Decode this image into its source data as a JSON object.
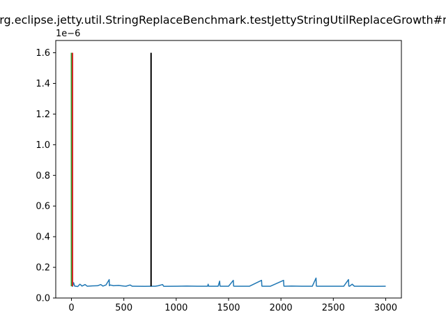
{
  "chart_data": {
    "type": "line",
    "title": "org.eclipse.jetty.util.StringReplaceBenchmark.testJettyStringUtilReplaceGrowth#m",
    "xlabel": "",
    "ylabel": "",
    "y_offset_label": "1e−6",
    "y_scale": 1e-06,
    "xlim": [
      -150,
      3150
    ],
    "ylim": [
      0,
      1.68
    ],
    "x_ticks": [
      0,
      500,
      1000,
      1500,
      2000,
      2500,
      3000
    ],
    "y_ticks": [
      0.0,
      0.2,
      0.4,
      0.6,
      0.8,
      1.0,
      1.2,
      1.4,
      1.6
    ],
    "grid": false,
    "series": [
      {
        "color": "#1f77b4",
        "x_range": [
          0,
          3000
        ],
        "baseline": 0.077,
        "x": [
          0,
          5,
          10,
          20,
          30,
          40,
          60,
          80,
          90,
          100,
          130,
          150,
          200,
          250,
          280,
          300,
          330,
          360,
          362,
          370,
          400,
          450,
          500,
          520,
          560,
          580,
          600,
          700,
          760,
          800,
          830,
          870,
          880,
          890,
          1000,
          1100,
          1200,
          1300,
          1305,
          1310,
          1400,
          1415,
          1418,
          1425,
          1500,
          1545,
          1548,
          1555,
          1600,
          1700,
          1815,
          1818,
          1825,
          1900,
          2025,
          2028,
          2035,
          2100,
          2200,
          2300,
          2335,
          2338,
          2345,
          2400,
          2500,
          2600,
          2645,
          2648,
          2655,
          2680,
          2700,
          2800,
          2900,
          3000
        ],
        "y": [
          0.085,
          0.08,
          0.076,
          0.1,
          0.078,
          0.077,
          0.075,
          0.09,
          0.085,
          0.078,
          0.088,
          0.077,
          0.079,
          0.08,
          0.088,
          0.078,
          0.085,
          0.12,
          0.08,
          0.085,
          0.08,
          0.082,
          0.078,
          0.077,
          0.085,
          0.077,
          0.077,
          0.076,
          0.077,
          0.077,
          0.08,
          0.088,
          0.077,
          0.076,
          0.077,
          0.078,
          0.077,
          0.077,
          0.09,
          0.077,
          0.077,
          0.11,
          0.078,
          0.077,
          0.077,
          0.115,
          0.078,
          0.077,
          0.077,
          0.077,
          0.115,
          0.078,
          0.077,
          0.077,
          0.115,
          0.078,
          0.077,
          0.078,
          0.077,
          0.077,
          0.13,
          0.078,
          0.077,
          0.077,
          0.077,
          0.077,
          0.12,
          0.078,
          0.077,
          0.09,
          0.077,
          0.077,
          0.076,
          0.077
        ]
      }
    ],
    "vlines": [
      {
        "x": 0,
        "ymin": 0.077,
        "ymax": 1.6,
        "color": "#2ca02c"
      },
      {
        "x": 10,
        "ymin": 0.077,
        "ymax": 1.6,
        "color": "#d62728"
      },
      {
        "x": 760,
        "ymin": 0.077,
        "ymax": 1.6,
        "color": "#000000"
      }
    ]
  }
}
